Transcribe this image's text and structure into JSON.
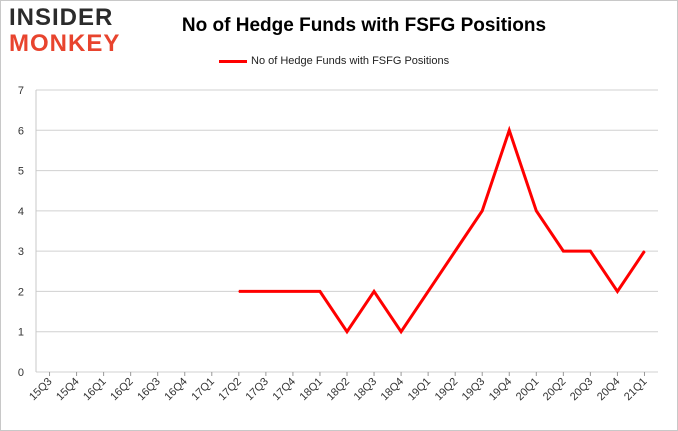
{
  "logo": {
    "line1": "INSIDER",
    "line2": "MONKEY"
  },
  "chart_data": {
    "type": "line",
    "title": "No of Hedge Funds with FSFG Positions",
    "xlabel": "",
    "ylabel": "",
    "ylim": [
      0,
      7
    ],
    "yticks": [
      0,
      1,
      2,
      3,
      4,
      5,
      6,
      7
    ],
    "grid": "horizontal",
    "legend_position": "top-center",
    "categories": [
      "15Q3",
      "15Q4",
      "16Q1",
      "16Q2",
      "16Q3",
      "16Q4",
      "17Q1",
      "17Q2",
      "17Q3",
      "17Q4",
      "18Q1",
      "18Q2",
      "18Q3",
      "18Q4",
      "19Q1",
      "19Q2",
      "19Q3",
      "19Q4",
      "20Q1",
      "20Q2",
      "20Q3",
      "20Q4",
      "21Q1"
    ],
    "series": [
      {
        "name": "No of Hedge Funds with FSFG Positions",
        "color": "#ff0000",
        "values": [
          null,
          null,
          null,
          null,
          null,
          null,
          null,
          2,
          2,
          2,
          2,
          1,
          2,
          1,
          2,
          3,
          4,
          6,
          4,
          3,
          3,
          2,
          3
        ]
      }
    ]
  }
}
